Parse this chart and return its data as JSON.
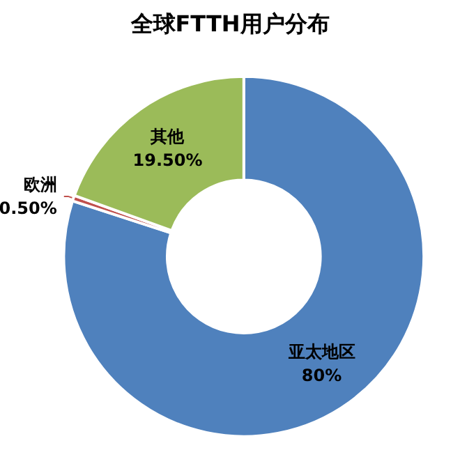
{
  "chart_data": {
    "type": "donut",
    "title": "全球FTTH用户分布",
    "categories": [
      "亚太地区",
      "欧洲",
      "其他"
    ],
    "values": [
      80,
      0.5,
      19.5
    ],
    "value_labels": [
      "80%",
      "0.50%",
      "19.50%"
    ],
    "colors": [
      "#4f81bd",
      "#c0504d",
      "#9bbb59"
    ],
    "legend": false
  }
}
